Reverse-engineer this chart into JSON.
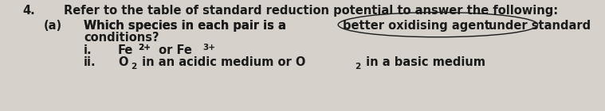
{
  "bg_color": "#d6d2cb",
  "number": "4.",
  "line1": "Refer to the table of standard reduction potential to answer the following:",
  "sub_a": "(a)",
  "line2_pre": "Which species in each pair is a",
  "line2_circle": "better oxidising agent",
  "line2_post": "under standard",
  "line3": "conditions?",
  "roman_i": "i.",
  "roman_ii": "ii.",
  "text_color": "#1a1a1a",
  "font_size": 10.5,
  "font_size_sup": 7.5
}
